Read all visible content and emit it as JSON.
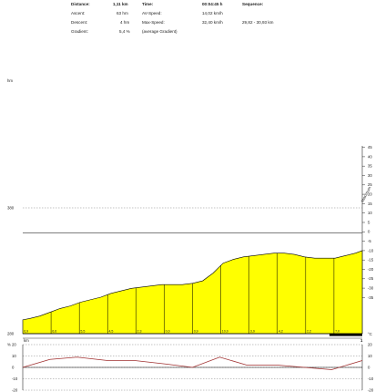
{
  "stats": {
    "distance_label": "Distance:",
    "distance_value": "1,11 km",
    "time_label": "Time:",
    "time_value": "00:04:45 h",
    "sequence_label": "Sequence:",
    "ascent_label": "Ascent:",
    "ascent_value": "63 hm",
    "avspeed_label": "AV-Speed:",
    "avspeed_value": "14,02 km/h",
    "descent_label": "Descent:",
    "descent_value": "4 hm",
    "maxspeed_label": "Max-Speed:",
    "maxspeed_value": "32,40 km/h",
    "sequence_value": "29,82 - 30,93 km",
    "gradient_label": "Gradient:",
    "gradient_value": "5,4 %",
    "gradient_note": "(average Gradient)"
  },
  "chart_data": [
    {
      "type": "area",
      "ylabel": "hm",
      "ylim": [
        280,
        380
      ],
      "y_ticks": [
        "380",
        "280"
      ],
      "reference_line": 360,
      "xlabel": "km",
      "x_tick": "1",
      "x": [
        0,
        0.02,
        0.05,
        0.08,
        0.11,
        0.14,
        0.17,
        0.2,
        0.23,
        0.26,
        0.29,
        0.32,
        0.35,
        0.38,
        0.41,
        0.44,
        0.47,
        0.5,
        0.53,
        0.56,
        0.59,
        0.62,
        0.65,
        0.68,
        0.71,
        0.74,
        0.77,
        0.8,
        0.83,
        0.86,
        0.89,
        0.92,
        0.95,
        0.98,
        1.0
      ],
      "elevation": [
        291,
        292,
        294,
        297,
        300,
        302,
        305,
        307,
        309,
        312,
        314,
        316,
        317,
        318,
        319,
        319,
        319,
        320,
        322,
        328,
        336,
        339,
        341,
        342,
        343,
        344,
        344,
        343,
        341,
        340,
        340,
        340,
        342,
        344,
        346
      ],
      "segment_gradients": [
        "6,9",
        "6,6",
        "5,5",
        "4,5",
        "2,3",
        "0,0",
        "0,9",
        "10,0",
        "3,9",
        "4,2",
        "2,2",
        "7,0"
      ],
      "right_axis_label": "Maximum",
      "right_axis_unit": "°C",
      "right_ticks": [
        "45",
        "40",
        "35",
        "30",
        "25",
        "20",
        "15",
        "10",
        "5",
        "0",
        "-5",
        "-10",
        "-15",
        "-20",
        "-25",
        "-30",
        "-35"
      ]
    },
    {
      "type": "line",
      "ylabel": "%",
      "y_ticks_left": [
        "20",
        "10",
        "0",
        "-10",
        "-20"
      ],
      "y_ticks_right": [
        "20",
        "10",
        "0",
        "-10",
        "-20"
      ],
      "ylim": [
        -20,
        20
      ],
      "x": [
        0,
        0.08,
        0.16,
        0.25,
        0.33,
        0.42,
        0.5,
        0.58,
        0.66,
        0.75,
        0.83,
        0.91,
        1.0
      ],
      "values": [
        0,
        7,
        9,
        6,
        6,
        3,
        0,
        9,
        2,
        2,
        0,
        -2,
        6
      ]
    }
  ],
  "colors": {
    "fill": "#ffff00",
    "stroke": "#000000",
    "line": "#a03030",
    "grid": "#888888"
  }
}
